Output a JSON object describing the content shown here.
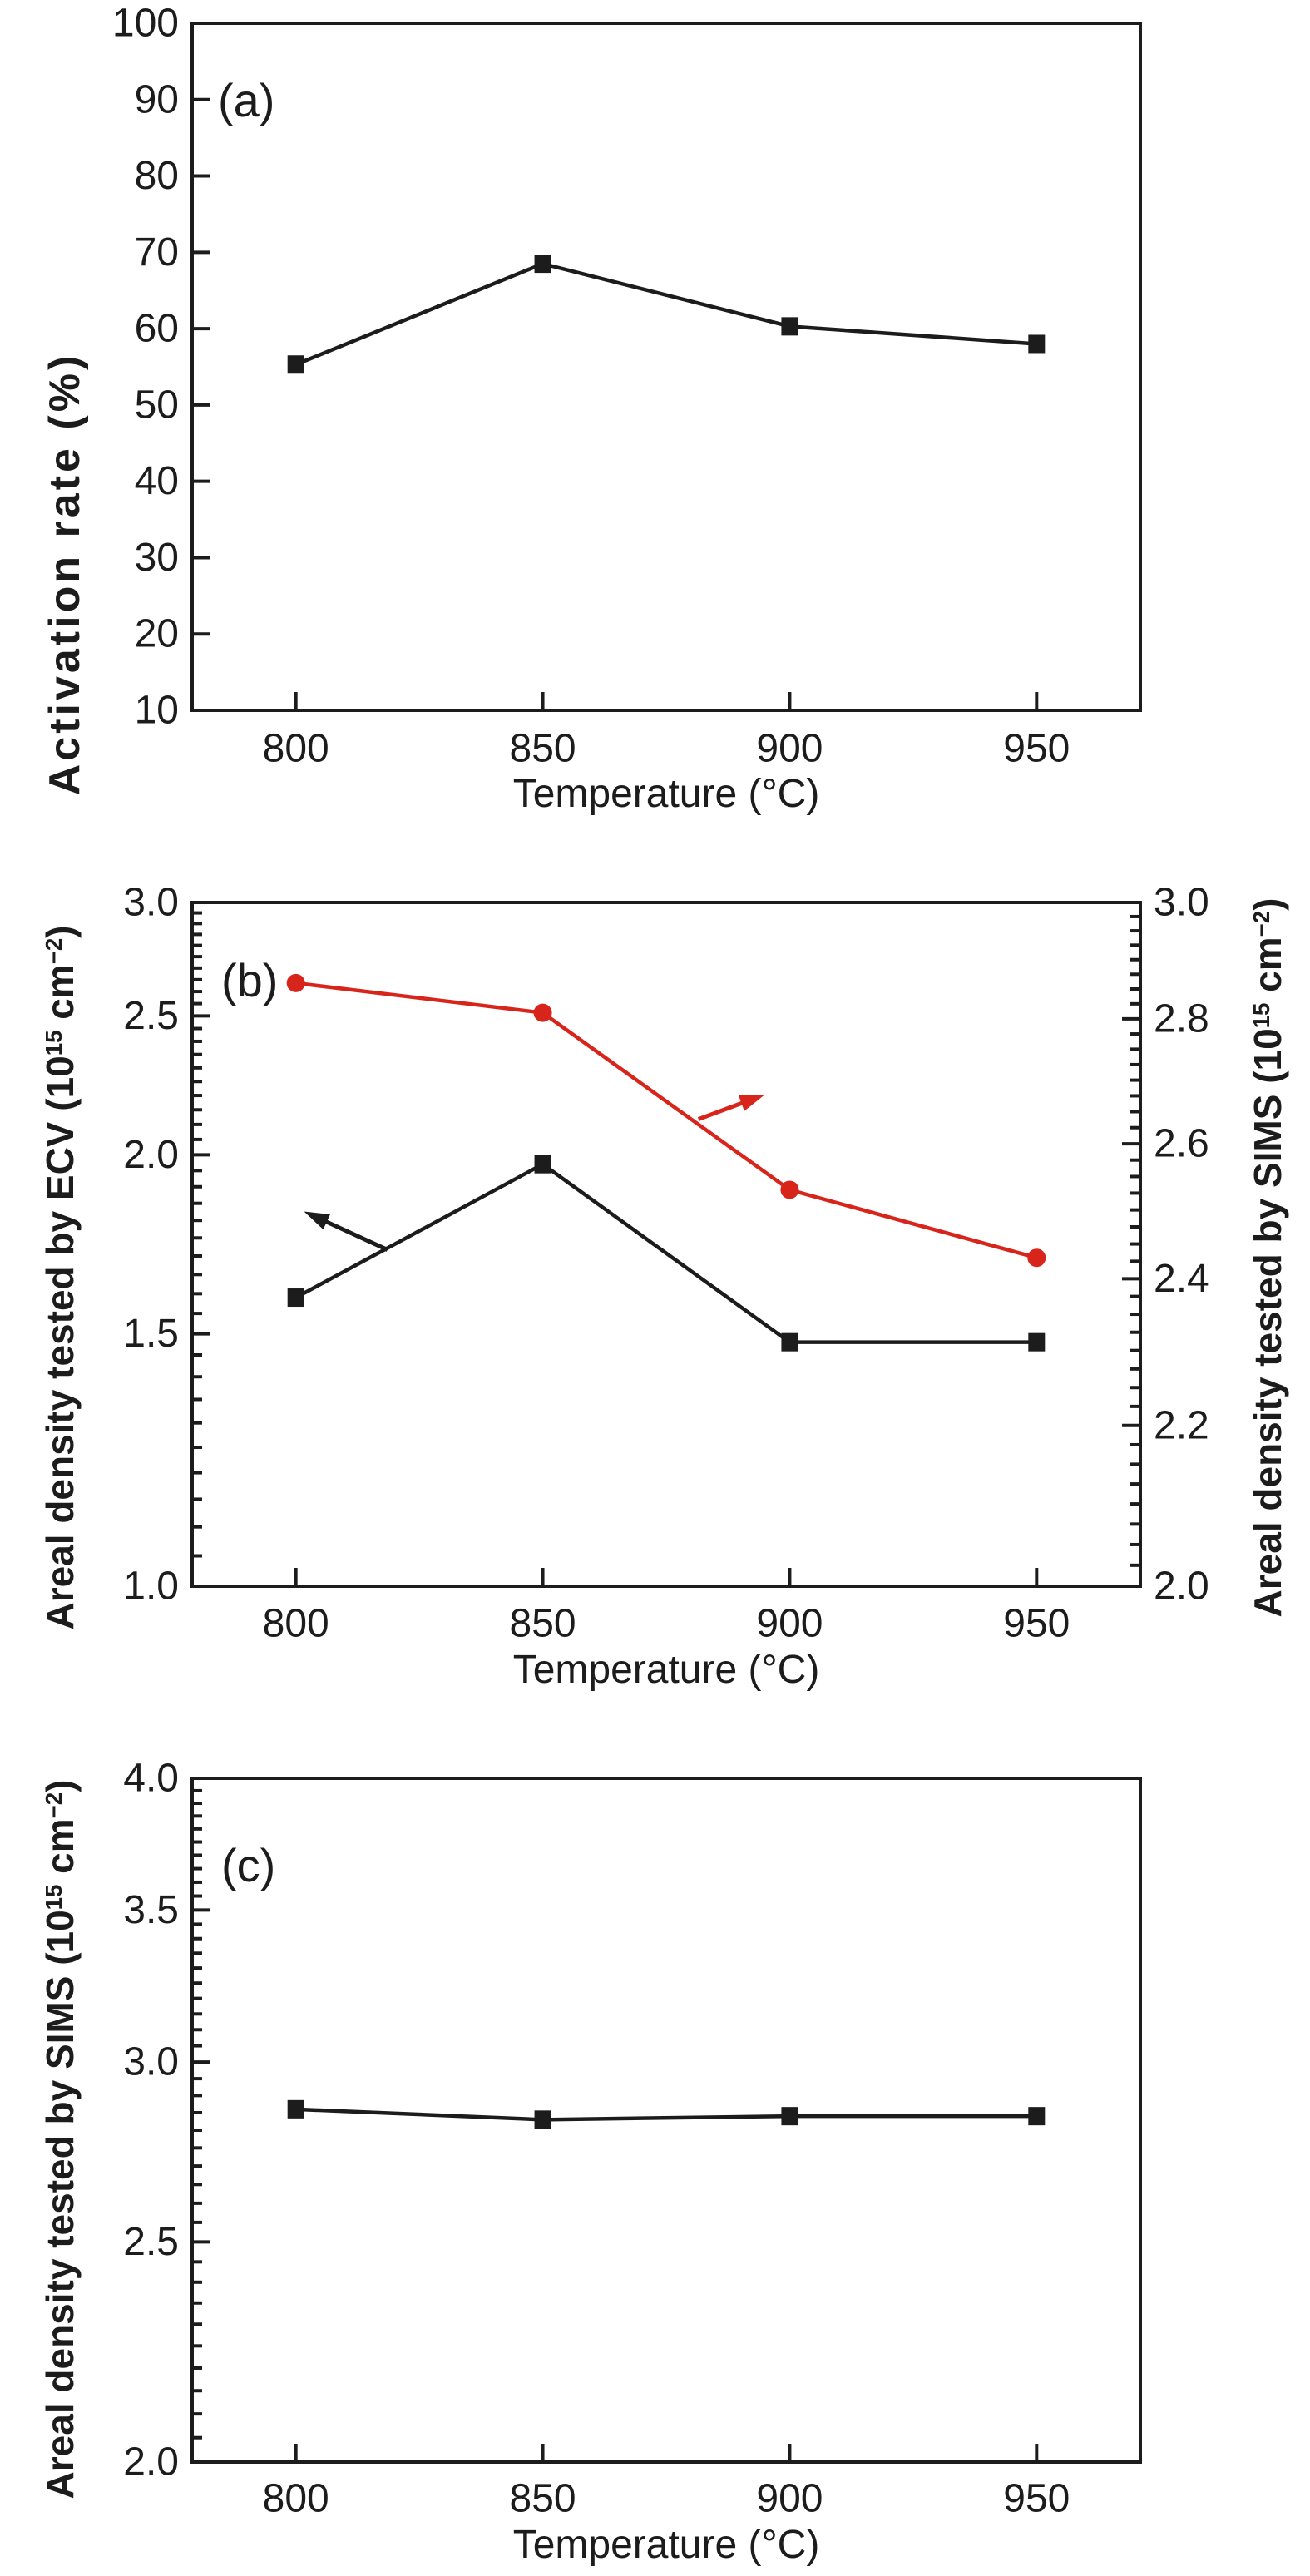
{
  "figure": {
    "background": "#ffffff",
    "ink_color": "#1c1c1c",
    "accent_red": "#d8251c"
  },
  "chart_data": [
    {
      "id": "a",
      "type": "line",
      "panel_label": "(a)",
      "xlabel": "Temperature (°C)",
      "ylabel": "Activation rate (%)",
      "x": [
        800,
        850,
        900,
        950
      ],
      "x_ticks": [
        "800",
        "850",
        "900",
        "950"
      ],
      "x_domain": [
        779,
        971
      ],
      "y_left": {
        "scale": "linear",
        "min": 10,
        "max": 100,
        "ticks": [
          "100",
          "90",
          "80",
          "70",
          "60",
          "50",
          "40",
          "30",
          "20",
          "10"
        ],
        "minor_step": null
      },
      "series": [
        {
          "name": "activation-rate",
          "axis": "left",
          "color": "#1c1c1c",
          "marker": "square",
          "values": [
            55.3,
            68.5,
            60.3,
            58.0
          ]
        }
      ]
    },
    {
      "id": "b",
      "type": "line",
      "panel_label": "(b)",
      "xlabel": "Temperature (°C)",
      "ylabel_left": {
        "pre": "Areal density tested by ECV (10",
        "sup1": "15",
        "mid": " cm",
        "sup2": "−2",
        "post": ")"
      },
      "ylabel_right": {
        "pre": "Areal density tested by SIMS (10",
        "sup1": "15",
        "mid": " cm",
        "sup2": "−2",
        "post": ")"
      },
      "x": [
        800,
        850,
        900,
        950
      ],
      "x_ticks": [
        "800",
        "850",
        "900",
        "950"
      ],
      "x_domain": [
        779,
        971
      ],
      "y_left": {
        "scale": "log",
        "min": 1.0,
        "max": 3.0,
        "ticks": [
          "3.0",
          "2.5",
          "2.0",
          "1.5",
          "1.0"
        ],
        "minor_step": 0.05
      },
      "y_right": {
        "scale": "log",
        "min": 2.0,
        "max": 3.0,
        "ticks": [
          "3.0",
          "2.8",
          "2.6",
          "2.4",
          "2.2",
          "2.0"
        ],
        "minor_step": 0.025
      },
      "series": [
        {
          "name": "ecv-areal-density",
          "axis": "left",
          "color": "#1c1c1c",
          "marker": "square",
          "values": [
            1.59,
            1.97,
            1.48,
            1.48
          ]
        },
        {
          "name": "sims-areal-density",
          "axis": "right",
          "color": "#d8251c",
          "marker": "circle",
          "values": [
            2.86,
            2.81,
            2.53,
            2.43
          ]
        }
      ],
      "arrows": [
        {
          "name": "ecv-left-axis-arrow",
          "color": "#1c1c1c",
          "tail": [
            0.206,
            0.508
          ],
          "head": [
            0.118,
            0.452
          ]
        },
        {
          "name": "sims-right-axis-arrow",
          "color": "#d8251c",
          "tail": [
            0.534,
            0.317
          ],
          "head": [
            0.604,
            0.281
          ]
        }
      ]
    },
    {
      "id": "c",
      "type": "line",
      "panel_label": "(c)",
      "xlabel": "Temperature (°C)",
      "ylabel_left": {
        "pre": "Areal density tested by SIMS (10",
        "sup1": "15",
        "mid": " cm",
        "sup2": "−2",
        "post": ")"
      },
      "x": [
        800,
        850,
        900,
        950
      ],
      "x_ticks": [
        "800",
        "850",
        "900",
        "950"
      ],
      "x_domain": [
        779,
        971
      ],
      "y_left": {
        "scale": "log",
        "min": 2.0,
        "max": 4.0,
        "ticks": [
          "4.0",
          "3.5",
          "3.0",
          "2.5",
          "2.0"
        ],
        "minor_step": 0.05
      },
      "series": [
        {
          "name": "sims-areal-density",
          "axis": "left",
          "color": "#1c1c1c",
          "marker": "square",
          "values": [
            2.86,
            2.83,
            2.84,
            2.84
          ]
        }
      ]
    }
  ]
}
